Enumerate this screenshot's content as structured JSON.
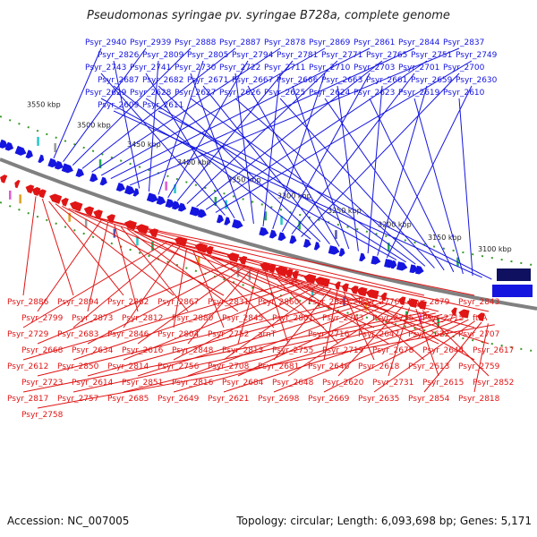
{
  "title": "Pseudomonas syringae pv. syringae B728a, complete genome",
  "accession_label": "Accession: NC_007005",
  "stats_label": "Topology: circular; Length: 6,093,698 bp; Genes: 5,171",
  "colors": {
    "forward": "#1515e0",
    "reverse": "#e01515",
    "backbone": "#808080",
    "scale_dot": "#3a9a2a"
  },
  "scale_labels": [
    "3550 kbp",
    "3500 kbp",
    "3450 kbp",
    "3400 kbp",
    "3350 kbp",
    "3300 kbp",
    "3250 kbp",
    "3200 kbp",
    "3150 kbp",
    "3100 kbp"
  ],
  "forward_genes": [
    "Psyr_2940",
    "Psyr_2939",
    "Psyr_2888",
    "Psyr_2887",
    "Psyr_2878",
    "Psyr_2869",
    "Psyr_2861",
    "Psyr_2844",
    "Psyr_2837",
    "Psyr_2826",
    "Psyr_2809",
    "Psyr_2805",
    "Psyr_2794",
    "Psyr_2781",
    "Psyr_2771",
    "Psyr_2765",
    "Psyr_2751",
    "Psyr_2749",
    "Psyr_2743",
    "Psyr_2741",
    "Psyr_2730",
    "Psyr_2722",
    "Psyr_2711",
    "Psyr_2710",
    "Psyr_2703",
    "Psyr_2701",
    "Psyr_2700",
    "Psyr_2687",
    "Psyr_2682",
    "Psyr_2671",
    "Psyr_2667",
    "Psyr_2666",
    "Psyr_2663",
    "Psyr_2661",
    "Psyr_2659",
    "Psyr_2630",
    "Psyr_2629",
    "Psyr_2628",
    "Psyr_2627",
    "Psyr_2626",
    "Psyr_2625",
    "Psyr_2624",
    "Psyr_2623",
    "Psyr_2619",
    "Psyr_2610",
    "Psyr_2609",
    "Psyr_2611"
  ],
  "reverse_genes": [
    "Psyr_2886",
    "Psyr_2894",
    "Psyr_2862",
    "Psyr_2867",
    "Psyr_2831",
    "Psyr_2860",
    "Psyr_2823",
    "Psyr_2776",
    "Psyr_2879",
    "Psyr_2843",
    "Psyr_2799",
    "Psyr_2873",
    "Psyr_2812",
    "Psyr_2880",
    "Psyr_2845",
    "Psyr_2801",
    "Psyr_2763",
    "Psyr_2735",
    "Psyr_2715",
    "ftrA",
    "Psyr_2729",
    "Psyr_2683",
    "Psyr_2846",
    "Psyr_2804",
    "Psyr_2752",
    "arnT",
    "Psyr_2716",
    "Psyr_2647",
    "Psyr_2622",
    "Psyr_2707",
    "Psyr_2668",
    "Psyr_2634",
    "Psyr_2616",
    "Psyr_2848",
    "Psyr_2813",
    "Psyr_2755",
    "Psyr_2719",
    "Psyr_2678",
    "Psyr_2644",
    "Psyr_2617",
    "Psyr_2612",
    "Psyr_2850",
    "Psyr_2814",
    "Psyr_2756",
    "Psyr_2708",
    "Psyr_2681",
    "Psyr_2646",
    "Psyr_2618",
    "Psyr_2613",
    "Psyr_2759",
    "Psyr_2723",
    "Psyr_2614",
    "Psyr_2851",
    "Psyr_2816",
    "Psyr_2684",
    "Psyr_2648",
    "Psyr_2620",
    "Psyr_2731",
    "Psyr_2615",
    "Psyr_2852",
    "Psyr_2817",
    "Psyr_2757",
    "Psyr_2685",
    "Psyr_2649",
    "Psyr_2621",
    "Psyr_2698",
    "Psyr_2669",
    "Psyr_2635",
    "Psyr_2854",
    "Psyr_2818",
    "Psyr_2758"
  ]
}
